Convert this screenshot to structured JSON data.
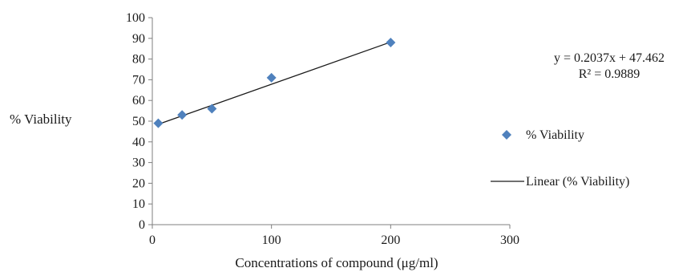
{
  "chart_data": {
    "type": "scatter",
    "xlabel": "Concentrations of compound (μg/ml)",
    "ylabel": "% Viability",
    "xlim": [
      0,
      300
    ],
    "ylim": [
      0,
      100
    ],
    "x_ticks": [
      0,
      100,
      200,
      300
    ],
    "y_ticks": [
      0,
      10,
      20,
      30,
      40,
      50,
      60,
      70,
      80,
      90,
      100
    ],
    "grid": false,
    "legend_position": "right",
    "series": [
      {
        "name": "% Viability",
        "marker": "diamond",
        "color": "#4f81bd",
        "x": [
          5,
          25,
          50,
          100,
          200
        ],
        "y": [
          49,
          53,
          56,
          71,
          88
        ]
      }
    ],
    "trendline": {
      "name": "Linear (% Viability)",
      "type": "linear",
      "color": "#1a1a1a",
      "slope": 0.2037,
      "intercept": 47.462,
      "x_range": [
        5,
        200
      ],
      "equation": "y = 0.2037x + 47.462",
      "r_squared": "R² = 0.9889"
    }
  }
}
